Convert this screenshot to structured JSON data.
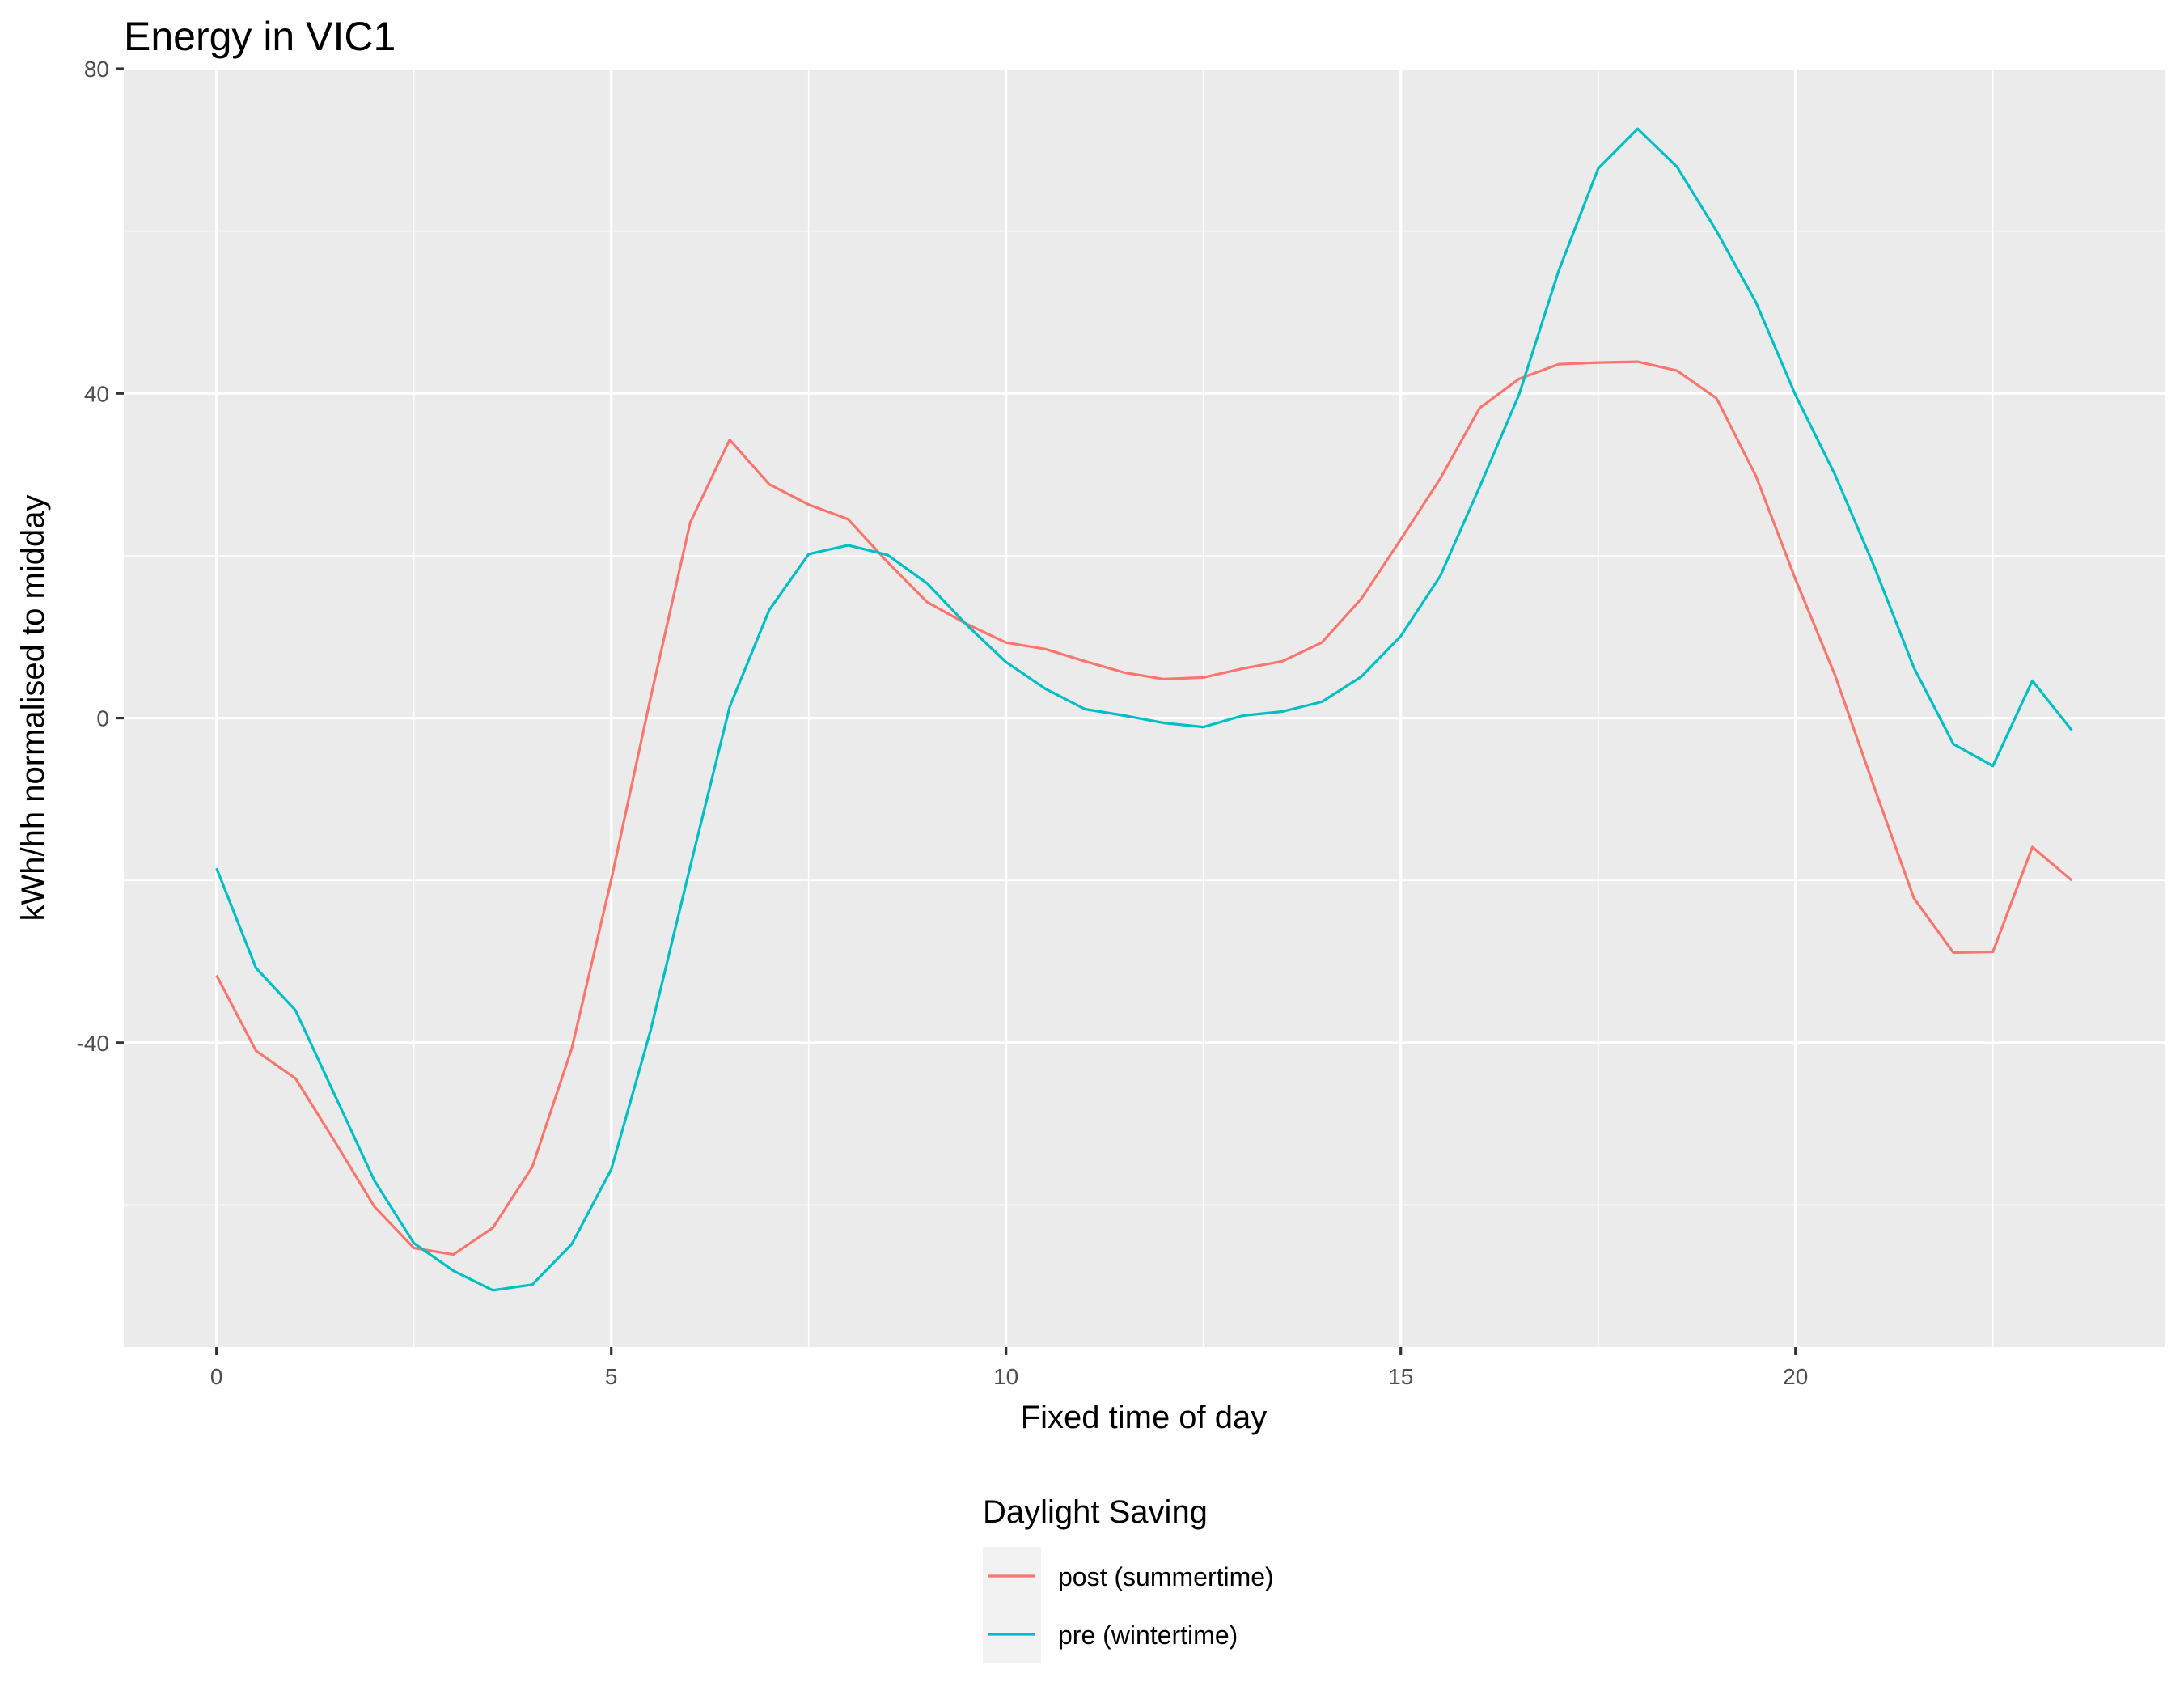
{
  "chart_data": {
    "type": "line",
    "title": "Energy in VIC1",
    "xlabel": "Fixed time of day",
    "ylabel": "kWh/hh normalised to midday",
    "xlim": [
      -1.175,
      24.675
    ],
    "ylim": [
      -77.5,
      80
    ],
    "x_ticks": [
      0,
      5,
      10,
      15,
      20
    ],
    "y_ticks": [
      -40,
      0,
      40,
      80
    ],
    "x_tick_labels": [
      "0",
      "5",
      "10",
      "15",
      "20"
    ],
    "y_tick_labels": [
      "-40",
      "0",
      "40",
      "80"
    ],
    "grid": true,
    "legend": {
      "title": "Daylight Saving",
      "position": "bottom"
    },
    "x": [
      0,
      0.5,
      1,
      1.5,
      2,
      2.5,
      3,
      3.5,
      4,
      4.5,
      5,
      5.5,
      6,
      6.5,
      7,
      7.5,
      8,
      8.5,
      9,
      9.5,
      10,
      10.5,
      11,
      11.5,
      12,
      12.5,
      13,
      13.5,
      14,
      14.5,
      15,
      15.5,
      16,
      16.5,
      17,
      17.5,
      18,
      18.5,
      19,
      19.5,
      20,
      20.5,
      21,
      21.5,
      22,
      22.5,
      23,
      23.5
    ],
    "series": [
      {
        "name": "post (summertime)",
        "color": "#F8766D",
        "values": [
          -31.7,
          -41.0,
          -44.4,
          -52.2,
          -60.2,
          -65.3,
          -66.1,
          -62.8,
          -55.3,
          -40.7,
          -19.9,
          2.6,
          24.1,
          34.3,
          28.8,
          26.3,
          24.5,
          19.2,
          14.3,
          11.6,
          9.3,
          8.5,
          7.0,
          5.6,
          4.8,
          5.0,
          6.1,
          7.0,
          9.3,
          14.7,
          22.0,
          29.5,
          38.2,
          41.8,
          43.6,
          43.8,
          43.9,
          42.8,
          39.4,
          29.8,
          17.1,
          5.3,
          -8.6,
          -22.2,
          -28.9,
          -28.8,
          -15.9,
          -20.0
        ]
      },
      {
        "name": "pre (wintertime)",
        "color": "#00BFC4",
        "values": [
          -18.5,
          -30.8,
          -36.0,
          -46.5,
          -57.0,
          -64.7,
          -68.1,
          -70.5,
          -69.8,
          -64.8,
          -55.6,
          -38.4,
          -18.3,
          1.4,
          13.3,
          20.2,
          21.3,
          20.1,
          16.6,
          11.5,
          6.9,
          3.6,
          1.1,
          0.3,
          -0.6,
          -1.1,
          0.3,
          0.8,
          2.0,
          5.1,
          10.1,
          17.5,
          28.5,
          39.9,
          55.1,
          67.7,
          72.6,
          67.9,
          60.0,
          51.2,
          39.8,
          30.0,
          18.6,
          6.2,
          -3.2,
          -5.9,
          4.6,
          -1.5
        ]
      }
    ]
  }
}
